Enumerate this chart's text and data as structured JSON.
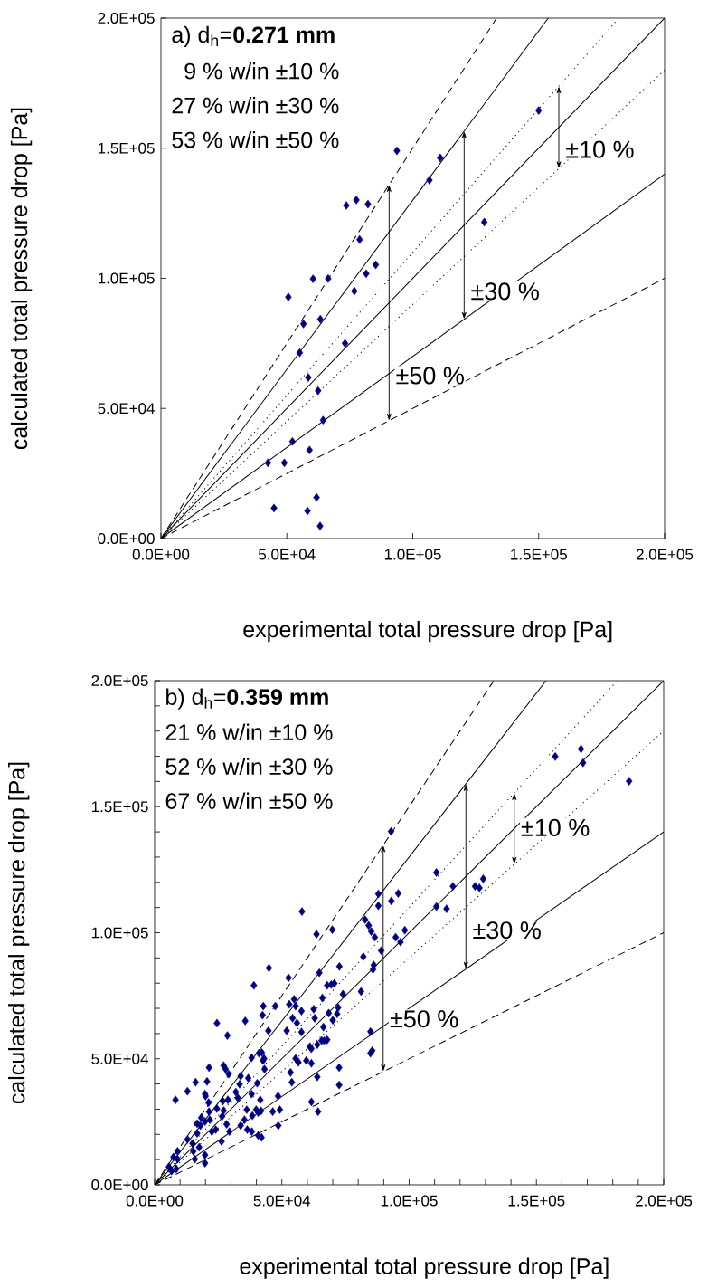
{
  "chart_data": [
    {
      "type": "scatter",
      "xlabel": "experimental total pressure drop [Pa]",
      "ylabel": "calculated total pressure drop [Pa]",
      "xlim": [
        0,
        200000
      ],
      "ylim": [
        0,
        200000
      ],
      "xticks": [
        {
          "value": 0,
          "label": "0.0E+00"
        },
        {
          "value": 50000,
          "label": "5.0E+04"
        },
        {
          "value": 100000,
          "label": "1.0E+05"
        },
        {
          "value": 150000,
          "label": "1.5E+05"
        },
        {
          "value": 200000,
          "label": "2.0E+05"
        }
      ],
      "yticks": [
        {
          "value": 0,
          "label": "0.0E+00"
        },
        {
          "value": 50000,
          "label": "5.0E+04"
        },
        {
          "value": 100000,
          "label": "1.0E+05"
        },
        {
          "value": 150000,
          "label": "1.5E+05"
        },
        {
          "value": 200000,
          "label": "2.0E+05"
        }
      ],
      "annotations": [
        "a) d$_{h}$=**0.271 mm**",
        "9 % w/in ±10 %",
        "27 % w/in ±30 %",
        "53 % w/in ±50 %",
        {
          "text": "±10 %",
          "x": 158000,
          "y": 158000
        },
        {
          "text": "±30 %",
          "x": 120400,
          "y": 120400
        },
        {
          "text": "±50 %",
          "x": 90600,
          "y": 90600
        }
      ],
      "series": [
        {
          "type": "scatter",
          "color": "#000080",
          "marker": "diamond",
          "x": [
            150000,
            93700,
            110900,
            106600,
            73600,
            77600,
            82200,
            78900,
            128400,
            85300,
            81500,
            60400,
            66400,
            50600,
            76800,
            56600,
            63300,
            55100,
            73100,
            58500,
            62400,
            64400,
            52200,
            59000,
            42500,
            49000,
            61800,
            44900,
            58200,
            63200
          ],
          "values": [
            164500,
            149000,
            146300,
            137700,
            128000,
            130100,
            128500,
            114900,
            121600,
            105200,
            101800,
            99800,
            99900,
            92800,
            95100,
            82500,
            84300,
            71400,
            75000,
            61900,
            56800,
            45500,
            37300,
            34000,
            29100,
            29100,
            15800,
            11700,
            10600,
            4800
          ]
        },
        {
          "type": "line",
          "color": "#000000",
          "line_style": "dashed",
          "x": [
            0,
            133300
          ],
          "values": [
            0,
            200000
          ]
        },
        {
          "type": "line",
          "color": "#000000",
          "line_style": "solid",
          "x": [
            0,
            153800
          ],
          "values": [
            0,
            200000
          ]
        },
        {
          "type": "line",
          "color": "#000000",
          "line_style": "dotted",
          "x": [
            0,
            181800
          ],
          "values": [
            0,
            200000
          ]
        },
        {
          "type": "line",
          "color": "#000000",
          "line_style": "solid",
          "x": [
            0,
            200000
          ],
          "values": [
            0,
            200000
          ]
        },
        {
          "type": "line",
          "color": "#000000",
          "line_style": "dotted",
          "x": [
            0,
            200000
          ],
          "values": [
            0,
            180000
          ]
        },
        {
          "type": "line",
          "color": "#000000",
          "line_style": "solid",
          "x": [
            0,
            200000
          ],
          "values": [
            0,
            140000
          ]
        },
        {
          "type": "line",
          "color": "#000000",
          "line_style": "dashed",
          "x": [
            0,
            200000
          ],
          "values": [
            0,
            100000
          ]
        }
      ]
    },
    {
      "type": "scatter",
      "xlabel": "experimental total pressure drop [Pa]",
      "ylabel": "calculated total pressure drop [Pa]",
      "xlim": [
        0,
        200000
      ],
      "ylim": [
        0,
        200000
      ],
      "xticks": [
        {
          "value": 0,
          "label": "0.0E+00"
        },
        {
          "value": 10000,
          "label": null
        },
        {
          "value": 20000,
          "label": null
        },
        {
          "value": 30000,
          "label": null
        },
        {
          "value": 40000,
          "label": null
        },
        {
          "value": 50000,
          "label": "5.0E+04"
        },
        {
          "value": 60000,
          "label": null
        },
        {
          "value": 70000,
          "label": null
        },
        {
          "value": 80000,
          "label": null
        },
        {
          "value": 90000,
          "label": null
        },
        {
          "value": 100000,
          "label": "1.0E+05"
        },
        {
          "value": 110000,
          "label": null
        },
        {
          "value": 120000,
          "label": null
        },
        {
          "value": 130000,
          "label": null
        },
        {
          "value": 140000,
          "label": null
        },
        {
          "value": 150000,
          "label": "1.5E+05"
        },
        {
          "value": 160000,
          "label": null
        },
        {
          "value": 170000,
          "label": null
        },
        {
          "value": 180000,
          "label": null
        },
        {
          "value": 190000,
          "label": null
        },
        {
          "value": 200000,
          "label": "2.0E+05"
        }
      ],
      "yticks": [
        {
          "value": 0,
          "label": "0.0E+00"
        },
        {
          "value": 10000,
          "label": null
        },
        {
          "value": 20000,
          "label": null
        },
        {
          "value": 30000,
          "label": null
        },
        {
          "value": 40000,
          "label": null
        },
        {
          "value": 50000,
          "label": "5.0E+04"
        },
        {
          "value": 60000,
          "label": null
        },
        {
          "value": 70000,
          "label": null
        },
        {
          "value": 80000,
          "label": null
        },
        {
          "value": 90000,
          "label": null
        },
        {
          "value": 100000,
          "label": "1.0E+05"
        },
        {
          "value": 110000,
          "label": null
        },
        {
          "value": 120000,
          "label": null
        },
        {
          "value": 130000,
          "label": null
        },
        {
          "value": 140000,
          "label": null
        },
        {
          "value": 150000,
          "label": "1.5E+05"
        },
        {
          "value": 160000,
          "label": null
        },
        {
          "value": 170000,
          "label": null
        },
        {
          "value": 180000,
          "label": null
        },
        {
          "value": 190000,
          "label": null
        },
        {
          "value": 200000,
          "label": "2.0E+05"
        }
      ],
      "annotations": [
        "b) d$_{h}$=**0.359 mm**",
        "21 % w/in ±10 %",
        "52 % w/in ±30 %",
        "67 % w/in ±50 %",
        {
          "text": "±10 %",
          "x": 141300,
          "y": 141300
        },
        {
          "text": "±30 %",
          "x": 122300,
          "y": 122300
        },
        {
          "text": "±50 %",
          "x": 89800,
          "y": 89800
        }
      ],
      "series": [
        {
          "type": "scatter",
          "color": "#000080",
          "marker": "diamond",
          "x": [
            92900,
            57900,
            63600,
            69800,
            44900,
            39000,
            52600,
            64700,
            72600,
            87900,
            87900,
            82700,
            84100,
            85100,
            86500,
            89000,
            82000,
            86100,
            85800,
            81100,
            67800,
            69400,
            70600,
            65900,
            74000,
            68400,
            72100,
            71700,
            70000,
            66300,
            62500,
            62900,
            57700,
            52900,
            54800,
            55400,
            54200,
            55900,
            51900,
            57700,
            42700,
            47400,
            42400,
            44700,
            35600,
            24500,
            28600,
            42100,
            41000,
            43000,
            42600,
            38100,
            33800,
            36800,
            43200,
            33400,
            40300,
            31900,
            38100,
            32700,
            36200,
            41500,
            39900,
            38400,
            40700,
            41800,
            46400,
            49200,
            48600,
            48500,
            21400,
            27100,
            27900,
            29100,
            16100,
            20600,
            19800,
            20000,
            12900,
            8200,
            21200,
            26800,
            28800,
            27100,
            26500,
            24500,
            28300,
            29400,
            26300,
            21400,
            18300,
            19800,
            16700,
            18000,
            21700,
            24000,
            22500,
            35300,
            33800,
            36400,
            38200,
            40700,
            42000,
            12900,
            16700,
            17500,
            15200,
            15800,
            19800,
            19800,
            14900,
            9000,
            7400,
            9000,
            5600,
            8500,
            6700,
            61600,
            63900,
            55400,
            56500,
            59600,
            61600,
            63900,
            53400,
            53900,
            61600,
            64200,
            72500,
            72500,
            84800,
            84800,
            85500,
            65600,
            66600,
            67800,
            61000,
            110700,
            117200,
            125900,
            127600,
            129100,
            110700,
            114700,
            95700,
            93000,
            98300,
            94700,
            96600,
            157400,
            167500,
            168300,
            186400
          ],
          "values": [
            140200,
            108400,
            99400,
            101200,
            86000,
            79100,
            82100,
            84100,
            86600,
            115400,
            110700,
            105200,
            102900,
            100500,
            98200,
            92900,
            90500,
            87200,
            85400,
            76700,
            79100,
            79400,
            79900,
            74100,
            75600,
            68100,
            70300,
            67800,
            65300,
            62600,
            69700,
            66100,
            68900,
            71600,
            73600,
            70900,
            66100,
            64200,
            61100,
            60600,
            70900,
            70900,
            67300,
            61100,
            65000,
            64100,
            59200,
            52500,
            52200,
            50100,
            49300,
            50400,
            43100,
            42300,
            45900,
            39900,
            40300,
            36800,
            36000,
            34500,
            29800,
            33700,
            29800,
            27400,
            28700,
            29300,
            29000,
            29800,
            23500,
            35200,
            46500,
            47300,
            45900,
            43900,
            40700,
            41000,
            36000,
            35200,
            37100,
            33700,
            32600,
            33200,
            33700,
            29400,
            27100,
            30200,
            24000,
            21100,
            17200,
            29000,
            26600,
            25100,
            24300,
            23500,
            25800,
            21900,
            21100,
            25800,
            23500,
            21900,
            21100,
            19600,
            18800,
            18000,
            20400,
            14900,
            13300,
            10200,
            11800,
            8600,
            16400,
            13300,
            11000,
            10200,
            7100,
            6300,
            5500,
            54000,
            55600,
            50100,
            48600,
            49300,
            48200,
            42800,
            44600,
            40700,
            32900,
            29000,
            46500,
            39600,
            60800,
            52200,
            53200,
            57200,
            57200,
            57500,
            54800,
            123900,
            118400,
            118400,
            117800,
            121400,
            110400,
            109500,
            115600,
            112600,
            101000,
            98200,
            96300,
            169900,
            172900,
            167400,
            160100
          ]
        },
        {
          "type": "line",
          "color": "#000000",
          "line_style": "dashed",
          "x": [
            0,
            133300
          ],
          "values": [
            0,
            200000
          ]
        },
        {
          "type": "line",
          "color": "#000000",
          "line_style": "solid",
          "x": [
            0,
            153800
          ],
          "values": [
            0,
            200000
          ]
        },
        {
          "type": "line",
          "color": "#000000",
          "line_style": "dotted",
          "x": [
            0,
            181800
          ],
          "values": [
            0,
            200000
          ]
        },
        {
          "type": "line",
          "color": "#000000",
          "line_style": "solid",
          "x": [
            0,
            200000
          ],
          "values": [
            0,
            200000
          ]
        },
        {
          "type": "line",
          "color": "#000000",
          "line_style": "dotted",
          "x": [
            0,
            200000
          ],
          "values": [
            0,
            180000
          ]
        },
        {
          "type": "line",
          "color": "#000000",
          "line_style": "solid",
          "x": [
            0,
            200000
          ],
          "values": [
            0,
            140000
          ]
        },
        {
          "type": "line",
          "color": "#000000",
          "line_style": "dashed",
          "x": [
            0,
            200000
          ],
          "values": [
            0,
            100000
          ]
        }
      ]
    }
  ]
}
